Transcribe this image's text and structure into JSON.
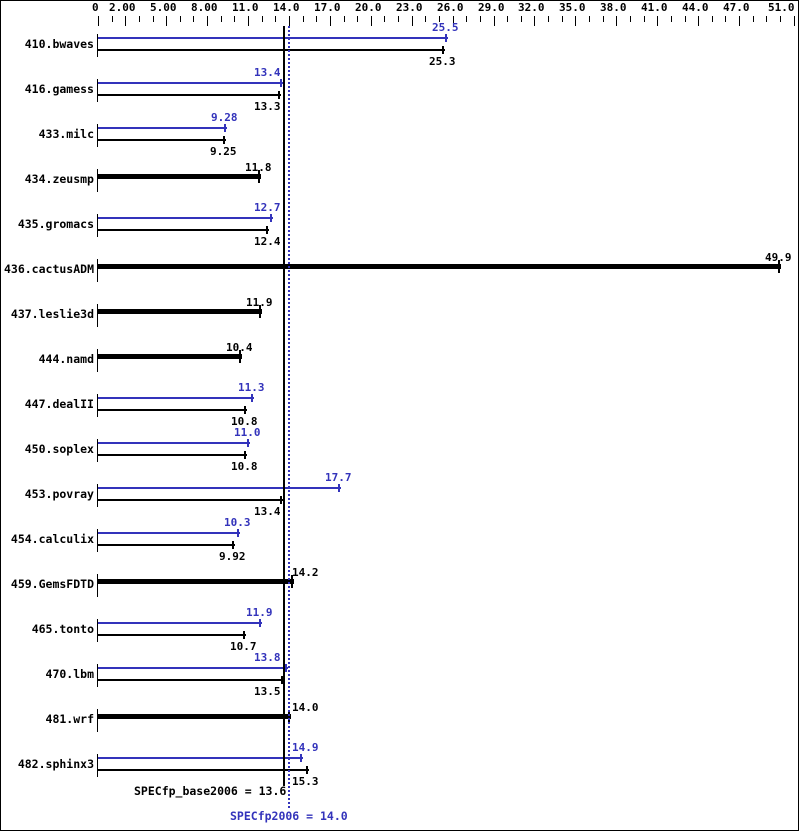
{
  "chart_data": {
    "type": "bar",
    "orientation": "horizontal",
    "title": "",
    "xlabel": "",
    "ylabel": "",
    "axis": {
      "min": 0,
      "max": 51,
      "minor_tick_step": 1,
      "major_ticks": [
        {
          "value": 0,
          "label": "0"
        },
        {
          "value": 2,
          "label": "2.00"
        },
        {
          "value": 5,
          "label": "5.00"
        },
        {
          "value": 8,
          "label": "8.00"
        },
        {
          "value": 11,
          "label": "11.0"
        },
        {
          "value": 14,
          "label": "14.0"
        },
        {
          "value": 17,
          "label": "17.0"
        },
        {
          "value": 20,
          "label": "20.0"
        },
        {
          "value": 23,
          "label": "23.0"
        },
        {
          "value": 26,
          "label": "26.0"
        },
        {
          "value": 29,
          "label": "29.0"
        },
        {
          "value": 32,
          "label": "32.0"
        },
        {
          "value": 35,
          "label": "35.0"
        },
        {
          "value": 38,
          "label": "38.0"
        },
        {
          "value": 41,
          "label": "41.0"
        },
        {
          "value": 44,
          "label": "44.0"
        },
        {
          "value": 47,
          "label": "47.0"
        },
        {
          "value": 51,
          "label": "51.0"
        }
      ]
    },
    "series": [
      {
        "name": "peak",
        "color": "#3333bb"
      },
      {
        "name": "base",
        "color": "#000000"
      }
    ],
    "benchmarks": [
      {
        "name": "410.bwaves",
        "style": "double",
        "peak": 25.5,
        "peak_label": "25.5",
        "base": 25.3,
        "base_label": "25.3"
      },
      {
        "name": "416.gamess",
        "style": "double",
        "peak": 13.4,
        "peak_label": "13.4",
        "base": 13.3,
        "base_label": "13.3"
      },
      {
        "name": "433.milc",
        "style": "double",
        "peak": 9.28,
        "peak_label": "9.28",
        "base": 9.25,
        "base_label": "9.25"
      },
      {
        "name": "434.zeusmp",
        "style": "single",
        "base": 11.8,
        "base_label": "11.8"
      },
      {
        "name": "435.gromacs",
        "style": "double",
        "peak": 12.7,
        "peak_label": "12.7",
        "base": 12.4,
        "base_label": "12.4"
      },
      {
        "name": "436.cactusADM",
        "style": "single",
        "base": 49.9,
        "base_label": "49.9"
      },
      {
        "name": "437.leslie3d",
        "style": "single",
        "base": 11.9,
        "base_label": "11.9"
      },
      {
        "name": "444.namd",
        "style": "single",
        "base": 10.4,
        "base_label": "10.4"
      },
      {
        "name": "447.dealII",
        "style": "double",
        "peak": 11.3,
        "peak_label": "11.3",
        "base": 10.8,
        "base_label": "10.8"
      },
      {
        "name": "450.soplex",
        "style": "double",
        "peak": 11.0,
        "peak_label": "11.0",
        "base": 10.8,
        "base_label": "10.8"
      },
      {
        "name": "453.povray",
        "style": "double",
        "peak": 17.7,
        "peak_label": "17.7",
        "base": 13.4,
        "base_label": "13.4"
      },
      {
        "name": "454.calculix",
        "style": "double",
        "peak": 10.3,
        "peak_label": "10.3",
        "base": 9.92,
        "base_label": "9.92"
      },
      {
        "name": "459.GemsFDTD",
        "style": "single",
        "base": 14.2,
        "base_label": "14.2"
      },
      {
        "name": "465.tonto",
        "style": "double",
        "peak": 11.9,
        "peak_label": "11.9",
        "base": 10.7,
        "base_label": "10.7"
      },
      {
        "name": "470.lbm",
        "style": "double",
        "peak": 13.8,
        "peak_label": "13.8",
        "base": 13.5,
        "base_label": "13.5"
      },
      {
        "name": "481.wrf",
        "style": "single",
        "base": 14.0,
        "base_label": "14.0"
      },
      {
        "name": "482.sphinx3",
        "style": "double",
        "peak": 14.9,
        "peak_label": "14.9",
        "base": 15.3,
        "base_label": "15.3"
      }
    ],
    "reference_lines": {
      "base_mean": 13.6,
      "peak_mean": 14.0
    },
    "footer": {
      "base_text": "SPECfp_base2006 = 13.6",
      "peak_text": "SPECfp2006 = 14.0"
    },
    "colors": {
      "peak": "#3333bb",
      "base": "#000000",
      "background": "#ffffff"
    }
  }
}
